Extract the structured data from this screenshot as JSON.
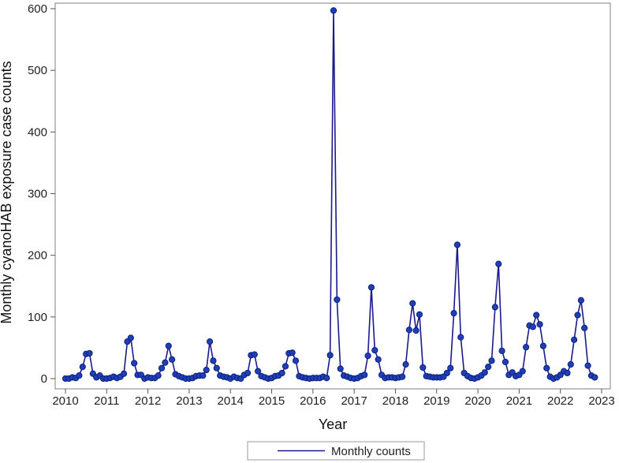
{
  "chart_data": {
    "type": "line",
    "title": "",
    "xlabel": "Year",
    "ylabel": "Monthly cyanoHAB exposure case counts",
    "xlim": [
      2010,
      2023
    ],
    "ylim": [
      0,
      600
    ],
    "x_ticks": [
      "2010",
      "2011",
      "2012",
      "2013",
      "2014",
      "2015",
      "2016",
      "2017",
      "2018",
      "2019",
      "2020",
      "2021",
      "2022",
      "2023"
    ],
    "y_ticks": [
      "0",
      "100",
      "200",
      "300",
      "400",
      "500",
      "600"
    ],
    "grid": false,
    "legend_position": "bottom-center",
    "colors": {
      "line": "#1a1a8c",
      "marker_fill": "#1f3fb8",
      "marker_stroke": "#0d1f7a",
      "frame": "#7f7f7f"
    },
    "series": [
      {
        "name": "Monthly counts",
        "start_year": 2010,
        "months_per_year": 12,
        "values": [
          0,
          0,
          2,
          1,
          5,
          19,
          40,
          41,
          8,
          2,
          5,
          0,
          0,
          1,
          3,
          1,
          3,
          8,
          60,
          66,
          25,
          6,
          6,
          0,
          2,
          1,
          1,
          5,
          17,
          26,
          53,
          31,
          7,
          4,
          2,
          0,
          0,
          1,
          4,
          5,
          5,
          14,
          60,
          29,
          17,
          5,
          3,
          2,
          0,
          3,
          1,
          0,
          6,
          9,
          38,
          39,
          12,
          4,
          2,
          0,
          1,
          4,
          5,
          9,
          20,
          41,
          42,
          29,
          4,
          2,
          1,
          0,
          1,
          1,
          1,
          3,
          1,
          38,
          597,
          128,
          16,
          5,
          3,
          1,
          0,
          1,
          4,
          6,
          37,
          148,
          46,
          31,
          6,
          1,
          2,
          2,
          1,
          2,
          3,
          23,
          79,
          122,
          78,
          104,
          18,
          4,
          3,
          2,
          2,
          2,
          3,
          9,
          17,
          106,
          217,
          67,
          9,
          4,
          1,
          0,
          2,
          5,
          10,
          19,
          29,
          116,
          186,
          45,
          27,
          6,
          10,
          4,
          6,
          12,
          51,
          86,
          84,
          103,
          88,
          53,
          17,
          3,
          0,
          2,
          6,
          12,
          9,
          23,
          63,
          103,
          127,
          82,
          21,
          5,
          2
        ]
      }
    ]
  }
}
